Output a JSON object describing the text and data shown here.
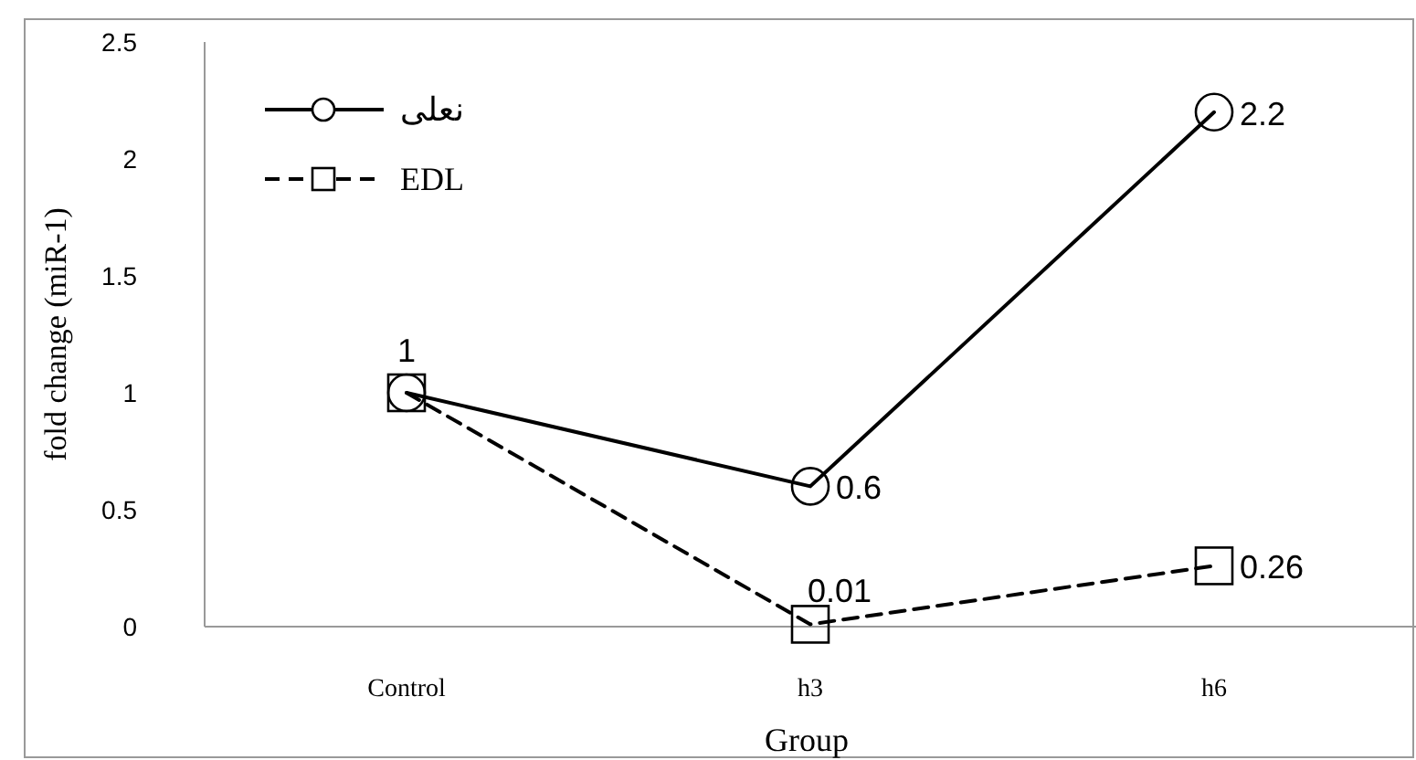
{
  "chart_data": {
    "type": "line",
    "xlabel": "Group",
    "ylabel": "fold change (miR-1)",
    "categories": [
      "Control",
      "h3",
      "h6"
    ],
    "series": [
      {
        "name": "نعلی",
        "color": "#000000",
        "values": [
          1,
          0.6,
          2.2
        ],
        "marker": "circle",
        "line_style": "solid",
        "value_labels": [
          "1",
          "0.6",
          "2.2"
        ]
      },
      {
        "name": "EDL",
        "color": "#000000",
        "values": [
          1,
          0.01,
          0.26
        ],
        "marker": "square",
        "line_style": "dashed",
        "value_labels": [
          null,
          "0.01",
          "0.26"
        ]
      }
    ],
    "ylim": [
      0,
      2.5
    ],
    "yticks": [
      0,
      0.5,
      1,
      1.5,
      2,
      2.5
    ],
    "grid": false,
    "legend": "top left"
  }
}
